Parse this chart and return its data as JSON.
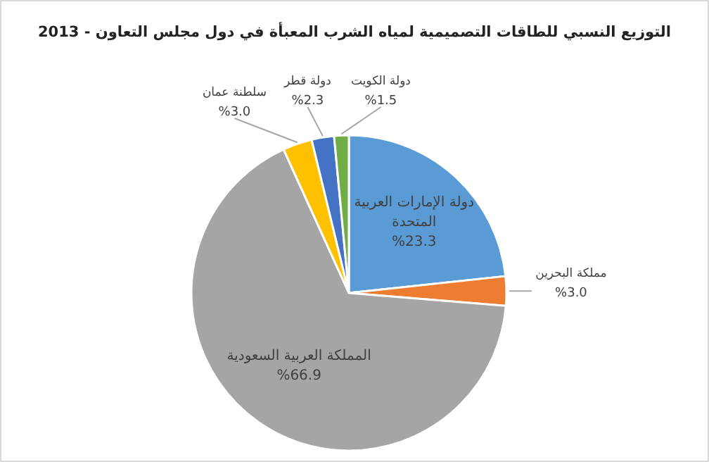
{
  "chart_data": {
    "type": "pie",
    "title": "التوزيع النسبي للطاقات التصميمية لمياه الشرب المعبأة في دول مجلس التعاون - 2013",
    "categories": [
      "دولة الإمارات العربية المتحدة",
      "مملكة البحرين",
      "المملكة العربية السعودية",
      "سلطنة عمان",
      "دولة قطر",
      "دولة الكويت"
    ],
    "values": [
      23.3,
      3.0,
      66.9,
      3.0,
      2.3,
      1.5
    ],
    "value_labels": [
      "%23.3",
      "%3.0",
      "%66.9",
      "%3.0",
      "%2.3",
      "%1.5"
    ],
    "colors": [
      "#5b9bd5",
      "#ed7d31",
      "#a5a5a5",
      "#ffc000",
      "#4472c4",
      "#70ad47"
    ]
  }
}
